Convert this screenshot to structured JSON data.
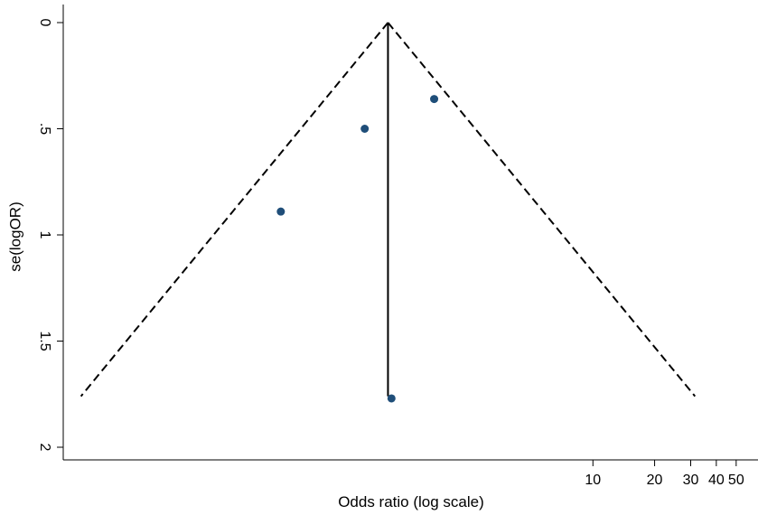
{
  "chart_data": {
    "type": "scatter",
    "subtype": "funnel-plot",
    "title": "",
    "xlabel": "Odds ratio (log scale)",
    "ylabel": "se(logOR)",
    "x_scale": "log",
    "y_reversed": true,
    "xlim": [
      0.03,
      56
    ],
    "ylim": [
      0,
      2.05
    ],
    "x_ticks": [
      {
        "value": 10,
        "label": "10"
      },
      {
        "value": 20,
        "label": "20"
      },
      {
        "value": 30,
        "label": "30"
      },
      {
        "value": 40,
        "label": "40"
      },
      {
        "value": 50,
        "label": "50"
      }
    ],
    "y_ticks": [
      {
        "value": 0,
        "label": "0"
      },
      {
        "value": 0.5,
        "label": ".5"
      },
      {
        "value": 1,
        "label": "1"
      },
      {
        "value": 1.5,
        "label": "1.5"
      },
      {
        "value": 2,
        "label": "2"
      }
    ],
    "points": [
      {
        "or": 1.68,
        "se": 0.36
      },
      {
        "or": 0.77,
        "se": 0.5
      },
      {
        "or": 0.3,
        "se": 0.89
      },
      {
        "or": 1.04,
        "se": 1.77
      }
    ],
    "pooled_or": 1.0,
    "funnel_max_se": 1.76,
    "grid": false,
    "legend": "none",
    "colors": {
      "points": "#1f4e79",
      "lines": "#000000"
    }
  }
}
